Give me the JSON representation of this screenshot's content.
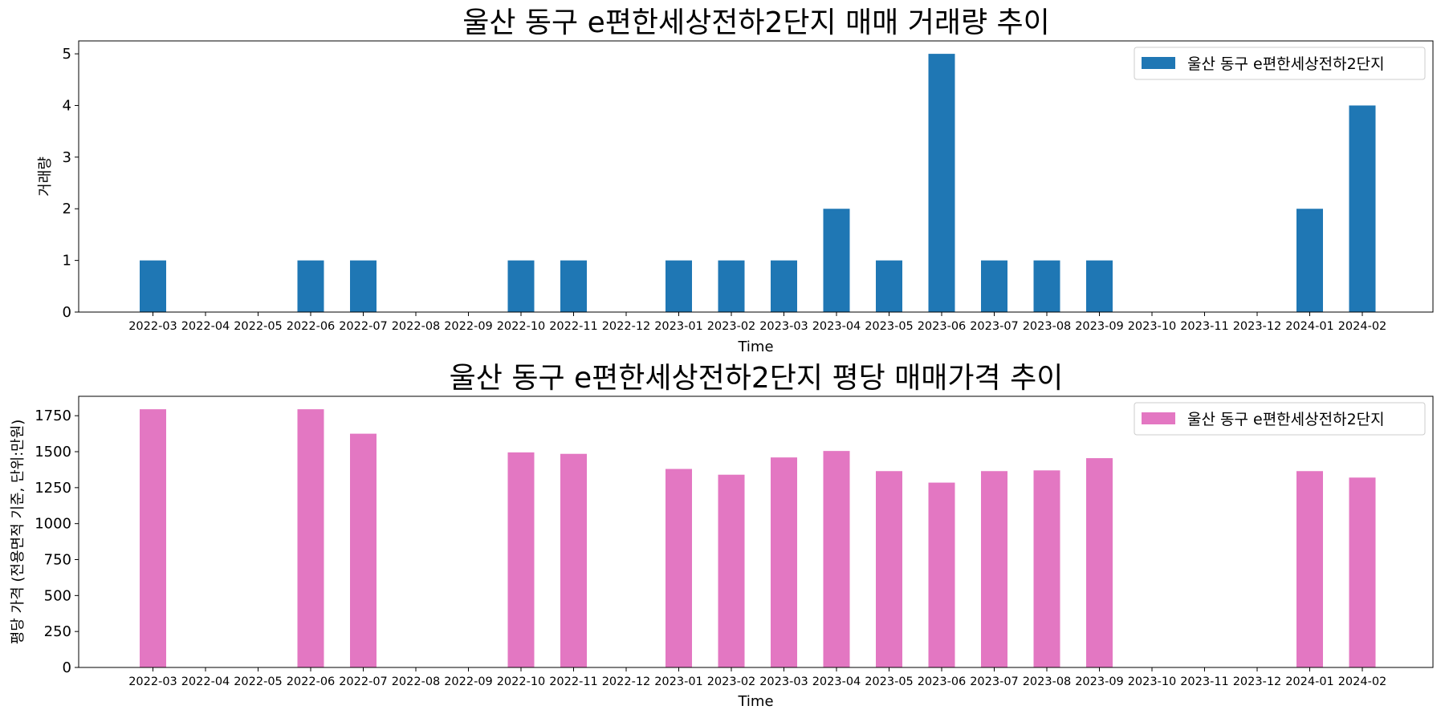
{
  "chart_data": [
    {
      "type": "bar",
      "title": "울산 동구 e편한세상전하2단지 매매 거래량 추이",
      "xlabel": "Time",
      "ylabel": "거래량",
      "categories": [
        "2022-03",
        "2022-04",
        "2022-05",
        "2022-06",
        "2022-07",
        "2022-08",
        "2022-09",
        "2022-10",
        "2022-11",
        "2022-12",
        "2023-01",
        "2023-02",
        "2023-03",
        "2023-04",
        "2023-05",
        "2023-06",
        "2023-07",
        "2023-08",
        "2023-09",
        "2023-10",
        "2023-11",
        "2023-12",
        "2024-01",
        "2024-02"
      ],
      "series": [
        {
          "name": "울산 동구 e편한세상전하2단지",
          "color": "#1f77b4",
          "values": [
            1,
            0,
            0,
            1,
            1,
            0,
            0,
            1,
            1,
            0,
            1,
            1,
            1,
            2,
            1,
            5,
            1,
            1,
            1,
            0,
            0,
            0,
            2,
            4
          ]
        }
      ],
      "ylim": [
        0,
        5.25
      ],
      "yticks": [
        0,
        1,
        2,
        3,
        4,
        5
      ],
      "grid": false,
      "legend": "top-right"
    },
    {
      "type": "bar",
      "title": "울산 동구 e편한세상전하2단지 평당 매매가격 추이",
      "xlabel": "Time",
      "ylabel": "평당 가격 (전용면적 기준, 단위:만원)",
      "categories": [
        "2022-03",
        "2022-04",
        "2022-05",
        "2022-06",
        "2022-07",
        "2022-08",
        "2022-09",
        "2022-10",
        "2022-11",
        "2022-12",
        "2023-01",
        "2023-02",
        "2023-03",
        "2023-04",
        "2023-05",
        "2023-06",
        "2023-07",
        "2023-08",
        "2023-09",
        "2023-10",
        "2023-11",
        "2023-12",
        "2024-01",
        "2024-02"
      ],
      "series": [
        {
          "name": "울산 동구 e편한세상전하2단지",
          "color": "#e377c2",
          "values": [
            1795,
            0,
            0,
            1795,
            1625,
            0,
            0,
            1495,
            1485,
            0,
            1380,
            1340,
            1460,
            1505,
            1365,
            1285,
            1365,
            1370,
            1455,
            0,
            0,
            0,
            1365,
            1320
          ]
        }
      ],
      "ylim": [
        0,
        1885
      ],
      "yticks": [
        0,
        250,
        500,
        750,
        1000,
        1250,
        1500,
        1750
      ],
      "grid": false,
      "legend": "top-right"
    }
  ]
}
